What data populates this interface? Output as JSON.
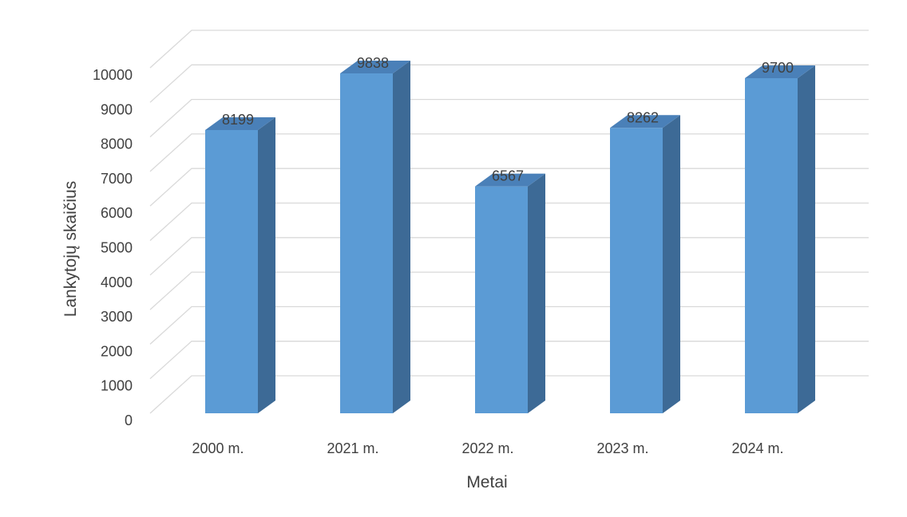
{
  "chart_data": {
    "type": "bar",
    "style": "3d-column",
    "categories": [
      "2000 m.",
      "2021 m.",
      "2022 m.",
      "2023 m.",
      "2024 m."
    ],
    "values": [
      8199,
      9838,
      6567,
      8262,
      9700
    ],
    "data_labels": [
      "8199",
      "9838",
      "6567",
      "8262",
      "9700"
    ],
    "xlabel": "Metai",
    "ylabel": "Lankytojų skaičius",
    "ylim": [
      0,
      10000
    ],
    "yticks": [
      0,
      1000,
      2000,
      3000,
      4000,
      5000,
      6000,
      7000,
      8000,
      9000,
      10000
    ],
    "ytick_labels": [
      "0",
      "1000",
      "2000",
      "3000",
      "4000",
      "5000",
      "6000",
      "7000",
      "8000",
      "9000",
      "10000"
    ],
    "grid": true,
    "legend": "none",
    "colors": {
      "bar_front": "#5b9bd5",
      "bar_side": "#3d6a96",
      "bar_top": "#4a80b8",
      "grid": "#d9d9d9"
    }
  }
}
